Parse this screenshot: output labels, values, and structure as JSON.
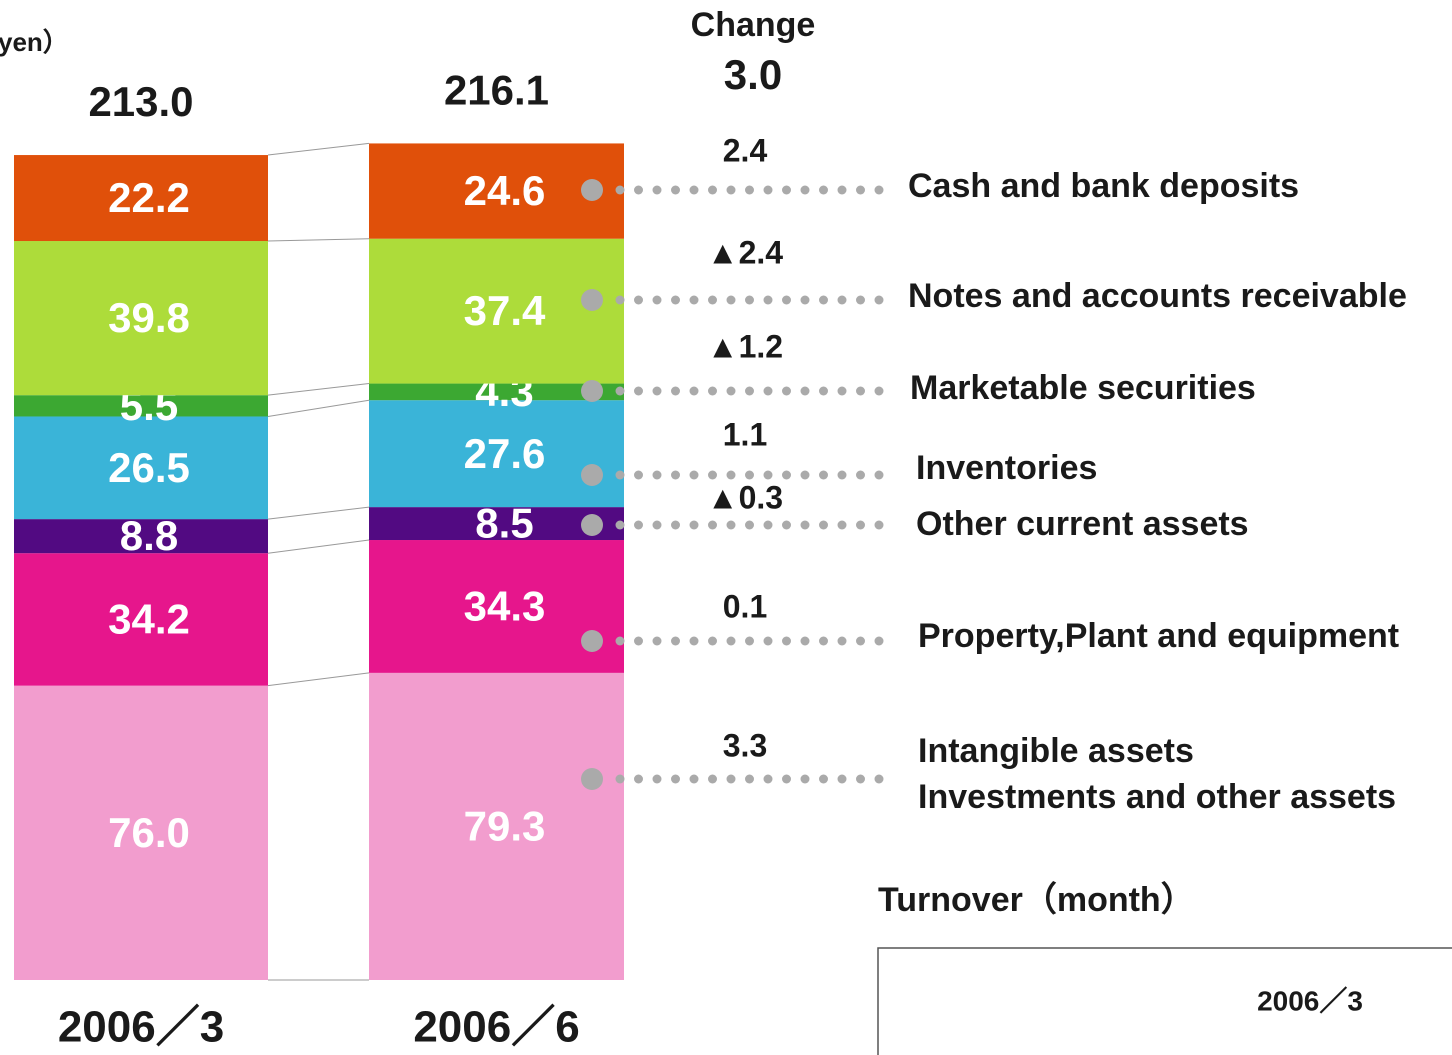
{
  "chart_data": {
    "type": "bar",
    "stacked": true,
    "unit_label": "yen）",
    "categories": [
      "2006／3",
      "2006／6"
    ],
    "totals": [
      213,
      216.1
    ],
    "total_labels": [
      "213.0",
      "216.1"
    ],
    "series": [
      {
        "name": "Cash and bank deposits",
        "color": "#e0500a",
        "values": [
          22.2,
          24.6
        ]
      },
      {
        "name": "Notes and accounts receivable",
        "color": "#addc3a",
        "values": [
          39.8,
          37.4
        ]
      },
      {
        "name": "Marketable securities",
        "color": "#3ca832",
        "values": [
          5.5,
          4.3
        ]
      },
      {
        "name": "Inventories",
        "color": "#3ab4d8",
        "values": [
          26.5,
          27.6
        ]
      },
      {
        "name": "Other current assets",
        "color": "#520a82",
        "values": [
          8.8,
          8.5
        ]
      },
      {
        "name": "Property,Plant and equipment",
        "color": "#e6168c",
        "values": [
          34.2,
          34.3
        ]
      },
      {
        "name": [
          "Intangible assets",
          "Investments and other assets"
        ],
        "color": "#f29dce",
        "values": [
          76,
          79.3
        ],
        "value_labels": [
          "76.0",
          "79.3"
        ]
      }
    ],
    "change": {
      "title": "Change",
      "total": 3,
      "total_label": "3.0",
      "values": [
        2.4,
        -2.4,
        -1.2,
        1.1,
        -0.3,
        0.1,
        3.3
      ],
      "value_labels": [
        "2.4",
        "▲2.4",
        "▲1.2",
        "1.1",
        "▲0.3",
        "0.1",
        "3.3"
      ]
    },
    "turnover": {
      "title": "Turnover（month）",
      "column": "2006／3"
    }
  }
}
